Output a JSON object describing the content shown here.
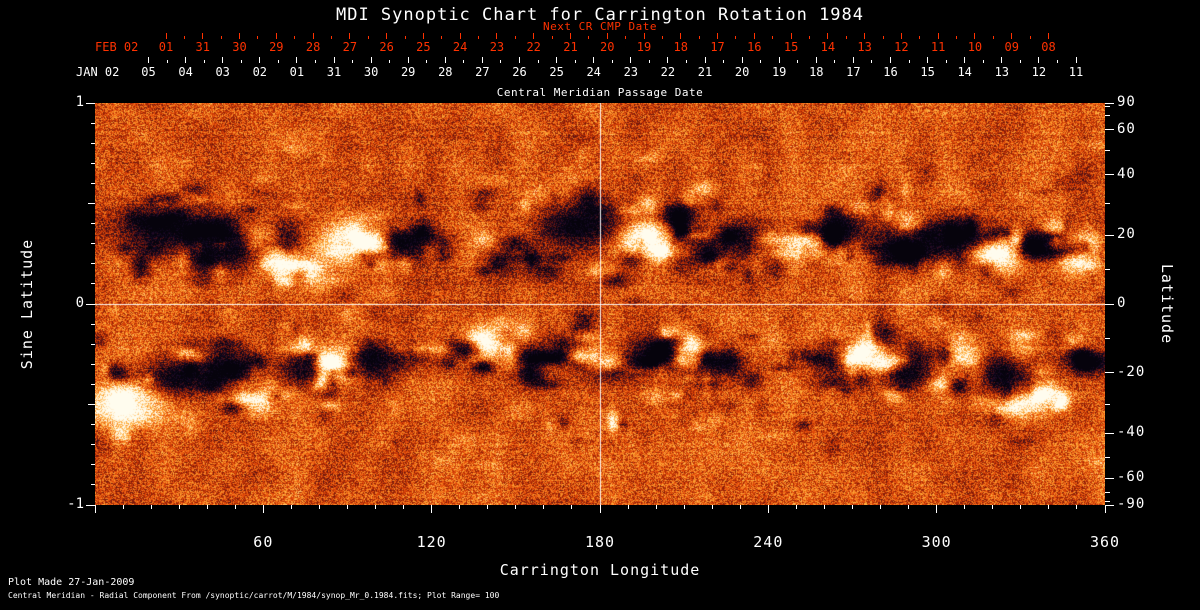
{
  "colors": {
    "background": "#000000",
    "text": "#ffffff",
    "accent_red": "#ff3200"
  },
  "footer": {
    "line1": "Plot Made 27-Jan-2009",
    "line2": "Central Meridian - Radial Component From /synoptic/carrot/M/1984/synop_Mr_0.1984.fits; Plot Range=  100"
  },
  "chart_data": {
    "type": "heatmap",
    "title": "MDI Synoptic Chart for Carrington Rotation 1984",
    "carrington_rotation": 1984,
    "xlabel": "Carrington Longitude",
    "xlim": [
      0,
      360
    ],
    "x_major_ticks": [
      60,
      120,
      180,
      240,
      300,
      360
    ],
    "x_minor_step_deg": 10,
    "y_left": {
      "label": "Sine Latitude",
      "lim": [
        -1,
        1
      ],
      "ticks": [
        1,
        0,
        -1
      ]
    },
    "y_right": {
      "label": "Latitude",
      "ticks_deg": [
        90,
        60,
        40,
        20,
        0,
        -20,
        -40,
        -60,
        -90
      ]
    },
    "top_axis_cmp": {
      "label": "Central Meridian Passage Date",
      "month_year": "JAN 02",
      "day_ticks": [
        "05",
        "04",
        "03",
        "02",
        "01",
        "31",
        "30",
        "29",
        "28",
        "27",
        "26",
        "25",
        "24",
        "23",
        "22",
        "21",
        "20",
        "19",
        "18",
        "17",
        "16",
        "15",
        "14",
        "13",
        "12",
        "11"
      ]
    },
    "top_axis_next_cr": {
      "label": "Next CR CMP Date",
      "month_year": "FEB 02",
      "day_ticks": [
        "01",
        "31",
        "30",
        "29",
        "28",
        "27",
        "26",
        "25",
        "24",
        "23",
        "22",
        "21",
        "20",
        "19",
        "18",
        "17",
        "16",
        "15",
        "14",
        "13",
        "12",
        "11",
        "10",
        "09",
        "08"
      ]
    },
    "reference_lines": {
      "longitude_deg": [
        180
      ],
      "sine_latitude": [
        0
      ]
    },
    "plot_range_gauss": 100,
    "value_field": "radial magnetic field (Mr)",
    "palette": {
      "mid": "#e64a08",
      "speckle_bright": "#ffac38",
      "positive_bright": "#fffcee",
      "speckle_dark": "#8e1c06",
      "negative_dark": "#160926",
      "negative_deep": "#06030c"
    },
    "active_regions": [
      {
        "lon": 25,
        "s": 0.38,
        "rl": 16,
        "rs": 0.12,
        "amp": -1.5
      },
      {
        "lon": 48,
        "s": 0.28,
        "rl": 12,
        "rs": 0.1,
        "amp": -1.3
      },
      {
        "lon": 66,
        "s": 0.22,
        "rl": 7,
        "rs": 0.07,
        "amp": 1.5
      },
      {
        "lon": 93,
        "s": 0.32,
        "rl": 11,
        "rs": 0.09,
        "amp": 1.8
      },
      {
        "lon": 112,
        "s": 0.3,
        "rl": 9,
        "rs": 0.08,
        "amp": -1.3
      },
      {
        "lon": 148,
        "s": 0.22,
        "rl": 9,
        "rs": 0.07,
        "amp": -1.0
      },
      {
        "lon": 172,
        "s": 0.4,
        "rl": 14,
        "rs": 0.11,
        "amp": -1.5
      },
      {
        "lon": 195,
        "s": 0.33,
        "rl": 9,
        "rs": 0.08,
        "amp": 1.9
      },
      {
        "lon": 207,
        "s": 0.42,
        "rl": 7,
        "rs": 0.07,
        "amp": -1.4
      },
      {
        "lon": 216,
        "s": 0.27,
        "rl": 8,
        "rs": 0.07,
        "amp": -1.2
      },
      {
        "lon": 232,
        "s": 0.35,
        "rl": 11,
        "rs": 0.09,
        "amp": -1.0
      },
      {
        "lon": 252,
        "s": 0.3,
        "rl": 9,
        "rs": 0.07,
        "amp": 0.8
      },
      {
        "lon": 268,
        "s": 0.38,
        "rl": 9,
        "rs": 0.08,
        "amp": -1.1
      },
      {
        "lon": 286,
        "s": 0.3,
        "rl": 11,
        "rs": 0.09,
        "amp": -1.3
      },
      {
        "lon": 305,
        "s": 0.34,
        "rl": 12,
        "rs": 0.1,
        "amp": -1.5
      },
      {
        "lon": 319,
        "s": 0.25,
        "rl": 9,
        "rs": 0.08,
        "amp": 2.0
      },
      {
        "lon": 333,
        "s": 0.31,
        "rl": 7,
        "rs": 0.07,
        "amp": -1.3
      },
      {
        "lon": 347,
        "s": 0.22,
        "rl": 6,
        "rs": 0.06,
        "amp": 1.1
      },
      {
        "lon": 12,
        "s": -0.48,
        "rl": 11,
        "rs": 0.1,
        "amp": 2.0
      },
      {
        "lon": 27,
        "s": -0.36,
        "rl": 11,
        "rs": 0.09,
        "amp": -1.5
      },
      {
        "lon": 44,
        "s": -0.29,
        "rl": 9,
        "rs": 0.08,
        "amp": -1.2
      },
      {
        "lon": 58,
        "s": -0.44,
        "rl": 7,
        "rs": 0.07,
        "amp": 1.3
      },
      {
        "lon": 74,
        "s": -0.32,
        "rl": 9,
        "rs": 0.08,
        "amp": -1.4
      },
      {
        "lon": 87,
        "s": -0.29,
        "rl": 7,
        "rs": 0.07,
        "amp": 1.6
      },
      {
        "lon": 104,
        "s": -0.27,
        "rl": 9,
        "rs": 0.07,
        "amp": -1.1
      },
      {
        "lon": 124,
        "s": -0.23,
        "rl": 11,
        "rs": 0.08,
        "amp": -1.3
      },
      {
        "lon": 139,
        "s": -0.19,
        "rl": 9,
        "rs": 0.07,
        "amp": 1.7
      },
      {
        "lon": 152,
        "s": -0.27,
        "rl": 7,
        "rs": 0.07,
        "amp": -1.2
      },
      {
        "lon": 167,
        "s": -0.21,
        "rl": 7,
        "rs": 0.06,
        "amp": -0.9
      },
      {
        "lon": 199,
        "s": -0.24,
        "rl": 11,
        "rs": 0.08,
        "amp": -1.4
      },
      {
        "lon": 212,
        "s": -0.21,
        "rl": 6,
        "rs": 0.06,
        "amp": 1.6
      },
      {
        "lon": 224,
        "s": -0.29,
        "rl": 7,
        "rs": 0.07,
        "amp": -1.1
      },
      {
        "lon": 261,
        "s": -0.27,
        "rl": 8,
        "rs": 0.07,
        "amp": -1.0
      },
      {
        "lon": 274,
        "s": -0.21,
        "rl": 7,
        "rs": 0.06,
        "amp": 1.4
      },
      {
        "lon": 289,
        "s": -0.32,
        "rl": 9,
        "rs": 0.08,
        "amp": -1.5
      },
      {
        "lon": 307,
        "s": -0.27,
        "rl": 8,
        "rs": 0.07,
        "amp": 1.6
      },
      {
        "lon": 322,
        "s": -0.34,
        "rl": 11,
        "rs": 0.09,
        "amp": -1.6
      },
      {
        "lon": 337,
        "s": -0.44,
        "rl": 9,
        "rs": 0.08,
        "amp": 1.2
      },
      {
        "lon": 352,
        "s": -0.29,
        "rl": 7,
        "rs": 0.07,
        "amp": -1.0
      }
    ],
    "render": {
      "seed": 1984,
      "grain": 1.05,
      "coarse_amp": 0.5,
      "row_streak": 0.16
    }
  }
}
